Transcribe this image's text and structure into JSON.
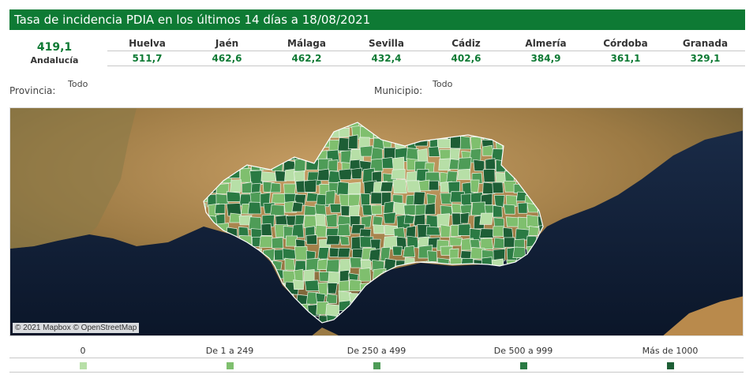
{
  "header": {
    "title": "Tasa de incidencia PDIA en los últimos 14 días a 18/08/2021"
  },
  "summary": {
    "total_value": "419,1",
    "total_label": "Andalucía",
    "provinces": [
      {
        "name": "Huelva",
        "value": "511,7"
      },
      {
        "name": "Jaén",
        "value": "462,6"
      },
      {
        "name": "Málaga",
        "value": "462,2"
      },
      {
        "name": "Sevilla",
        "value": "432,4"
      },
      {
        "name": "Cádiz",
        "value": "402,6"
      },
      {
        "name": "Almería",
        "value": "384,9"
      },
      {
        "name": "Córdoba",
        "value": "361,1"
      },
      {
        "name": "Granada",
        "value": "329,1"
      }
    ]
  },
  "filters": {
    "provincia_label": "Provincia:",
    "provincia_value": "Todo",
    "municipio_label": "Municipio:",
    "municipio_value": "Todo"
  },
  "map": {
    "attribution": "© 2021 Mapbox © OpenStreetMap"
  },
  "legend": {
    "items": [
      {
        "label": "0",
        "color": "#b7dfa7"
      },
      {
        "label": "De 1 a 249",
        "color": "#7fbf6e"
      },
      {
        "label": "De 250 a 499",
        "color": "#4e9c57"
      },
      {
        "label": "De 500 a 999",
        "color": "#2a7a43"
      },
      {
        "label": "Más de 1000",
        "color": "#1d5e35"
      }
    ]
  },
  "colors": {
    "accent": "#0e7a34",
    "sea": "#0e1c33",
    "land": "#b98a4c"
  }
}
